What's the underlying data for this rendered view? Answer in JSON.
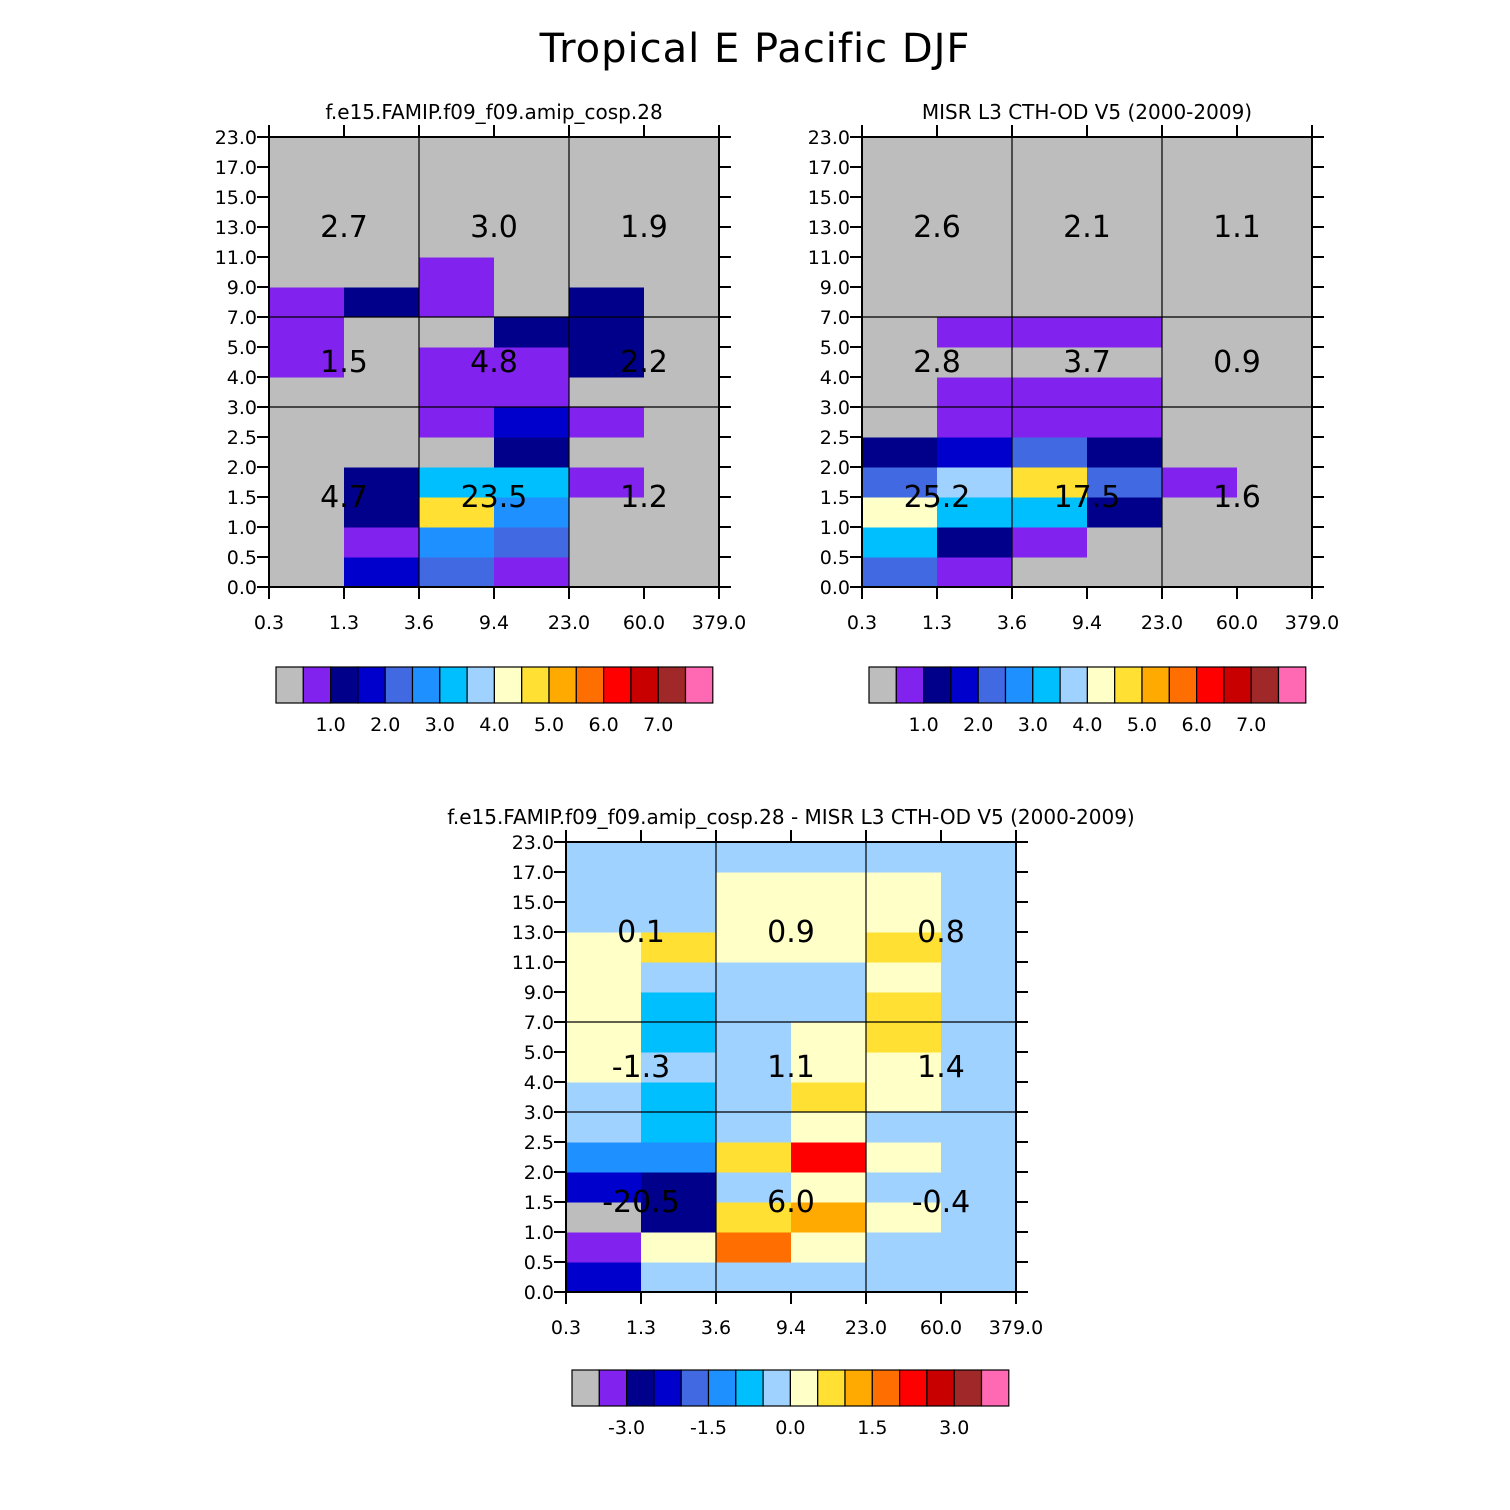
{
  "figure_title": "Tropical E Pacific DJF",
  "palettes": {
    "abs": [
      "#bdbdbd",
      "#8222ee",
      "#00008b",
      "#0000cd",
      "#4169e1",
      "#1e90ff",
      "#00bfff",
      "#a0d2ff",
      "#ffffc8",
      "#ffe033",
      "#ffaa00",
      "#ff6e00",
      "#ff0000",
      "#c80000",
      "#a02828",
      "#ff69b4"
    ],
    "diff": [
      "#bdbdbd",
      "#8222ee",
      "#00008b",
      "#0000cd",
      "#4169e1",
      "#1e90ff",
      "#00bfff",
      "#a0d2ff",
      "#ffffc8",
      "#ffe033",
      "#ffaa00",
      "#ff6e00",
      "#ff0000",
      "#c80000",
      "#a02828",
      "#ff69b4"
    ]
  },
  "x_tick_labels": [
    "0.3",
    "1.3",
    "3.6",
    "9.4",
    "23.0",
    "60.0",
    "379.0"
  ],
  "y_tick_labels": [
    "0.0",
    "0.5",
    "1.0",
    "1.5",
    "2.0",
    "2.5",
    "3.0",
    "4.0",
    "5.0",
    "7.0",
    "9.0",
    "11.0",
    "13.0",
    "15.0",
    "17.0",
    "23.0"
  ],
  "chart_data": [
    {
      "type": "heatmap",
      "title": "f.e15.FAMIP.f09_f09.amip_cosp.28",
      "x_bins": [
        "0.3",
        "1.3",
        "3.6",
        "9.4",
        "23.0",
        "60.0",
        "379.0"
      ],
      "y_bins": [
        "0.0",
        "0.5",
        "1.0",
        "1.5",
        "2.0",
        "2.5",
        "3.0",
        "4.0",
        "5.0",
        "7.0",
        "9.0",
        "11.0",
        "13.0",
        "15.0",
        "17.0",
        "23.0"
      ],
      "values": [
        [
          0,
          3,
          4,
          1,
          0,
          0
        ],
        [
          0,
          1,
          5,
          4,
          0,
          0
        ],
        [
          0,
          2,
          9,
          5,
          0,
          0
        ],
        [
          0,
          2,
          6,
          6,
          1,
          0
        ],
        [
          0,
          0,
          0,
          2,
          0,
          0
        ],
        [
          0,
          0,
          1,
          3,
          1,
          0
        ],
        [
          0,
          0,
          1,
          1,
          0,
          0
        ],
        [
          1,
          0,
          1,
          1,
          2,
          0
        ],
        [
          1,
          0,
          0,
          2,
          2,
          0
        ],
        [
          1,
          2,
          1,
          0,
          2,
          0
        ],
        [
          0,
          0,
          1,
          0,
          0,
          0
        ],
        [
          0,
          0,
          0,
          0,
          0,
          0
        ],
        [
          0,
          0,
          0,
          0,
          0,
          0
        ],
        [
          0,
          0,
          0,
          0,
          0,
          0
        ],
        [
          0,
          0,
          0,
          0,
          0,
          0
        ]
      ],
      "summaries": [
        [
          "4.7",
          "23.5",
          "1.2"
        ],
        [
          "1.5",
          "4.8",
          "2.2"
        ],
        [
          "2.7",
          "3.0",
          "1.9"
        ]
      ],
      "colorbar_labels": [
        "1.0",
        "2.0",
        "3.0",
        "4.0",
        "5.0",
        "6.0",
        "7.0"
      ]
    },
    {
      "type": "heatmap",
      "title": "MISR L3 CTH-OD V5 (2000-2009)",
      "x_bins": [
        "0.3",
        "1.3",
        "3.6",
        "9.4",
        "23.0",
        "60.0",
        "379.0"
      ],
      "y_bins": [
        "0.0",
        "0.5",
        "1.0",
        "1.5",
        "2.0",
        "2.5",
        "3.0",
        "4.0",
        "5.0",
        "7.0",
        "9.0",
        "11.0",
        "13.0",
        "15.0",
        "17.0",
        "23.0"
      ],
      "values": [
        [
          4,
          1,
          0,
          0,
          0,
          0
        ],
        [
          6,
          2,
          1,
          0,
          0,
          0
        ],
        [
          8,
          6,
          6,
          2,
          0,
          0
        ],
        [
          4,
          7,
          9,
          4,
          1,
          0
        ],
        [
          2,
          3,
          4,
          2,
          0,
          0
        ],
        [
          0,
          1,
          1,
          1,
          0,
          0
        ],
        [
          0,
          1,
          1,
          1,
          0,
          0
        ],
        [
          0,
          0,
          0,
          0,
          0,
          0
        ],
        [
          0,
          1,
          1,
          1,
          0,
          0
        ],
        [
          0,
          0,
          0,
          0,
          0,
          0
        ],
        [
          0,
          0,
          0,
          0,
          0,
          0
        ],
        [
          0,
          0,
          0,
          0,
          0,
          0
        ],
        [
          0,
          0,
          0,
          0,
          0,
          0
        ],
        [
          0,
          0,
          0,
          0,
          0,
          0
        ],
        [
          0,
          0,
          0,
          0,
          0,
          0
        ]
      ],
      "summaries": [
        [
          "25.2",
          "17.5",
          "1.6"
        ],
        [
          "2.8",
          "3.7",
          "0.9"
        ],
        [
          "2.6",
          "2.1",
          "1.1"
        ]
      ],
      "colorbar_labels": [
        "1.0",
        "2.0",
        "3.0",
        "4.0",
        "5.0",
        "6.0",
        "7.0"
      ]
    },
    {
      "type": "heatmap",
      "title": "f.e15.FAMIP.f09_f09.amip_cosp.28 - MISR L3 CTH-OD V5 (2000-2009)",
      "x_bins": [
        "0.3",
        "1.3",
        "3.6",
        "9.4",
        "23.0",
        "60.0",
        "379.0"
      ],
      "y_bins": [
        "0.0",
        "0.5",
        "1.0",
        "1.5",
        "2.0",
        "2.5",
        "3.0",
        "4.0",
        "5.0",
        "7.0",
        "9.0",
        "11.0",
        "13.0",
        "15.0",
        "17.0",
        "23.0"
      ],
      "values": [
        [
          3,
          7,
          7,
          7,
          7,
          7
        ],
        [
          1,
          8,
          11,
          8,
          7,
          7
        ],
        [
          0,
          2,
          9,
          10,
          8,
          7
        ],
        [
          3,
          2,
          7,
          8,
          7,
          7
        ],
        [
          5,
          5,
          9,
          12,
          8,
          7
        ],
        [
          7,
          6,
          7,
          8,
          7,
          7
        ],
        [
          7,
          6,
          7,
          9,
          8,
          7
        ],
        [
          8,
          7,
          7,
          8,
          8,
          7
        ],
        [
          8,
          6,
          7,
          8,
          9,
          7
        ],
        [
          8,
          6,
          7,
          7,
          9,
          7
        ],
        [
          8,
          7,
          7,
          7,
          8,
          7
        ],
        [
          8,
          9,
          8,
          8,
          9,
          7
        ],
        [
          7,
          7,
          8,
          8,
          8,
          7
        ],
        [
          7,
          7,
          8,
          8,
          8,
          7
        ],
        [
          7,
          7,
          7,
          7,
          7,
          7
        ]
      ],
      "summaries": [
        [
          "-20.5",
          "6.0",
          "-0.4"
        ],
        [
          "-1.3",
          "1.1",
          "1.4"
        ],
        [
          "0.1",
          "0.9",
          "0.8"
        ]
      ],
      "colorbar_labels": [
        "-3.0",
        "-1.5",
        "0.0",
        "1.5",
        "3.0"
      ]
    }
  ]
}
